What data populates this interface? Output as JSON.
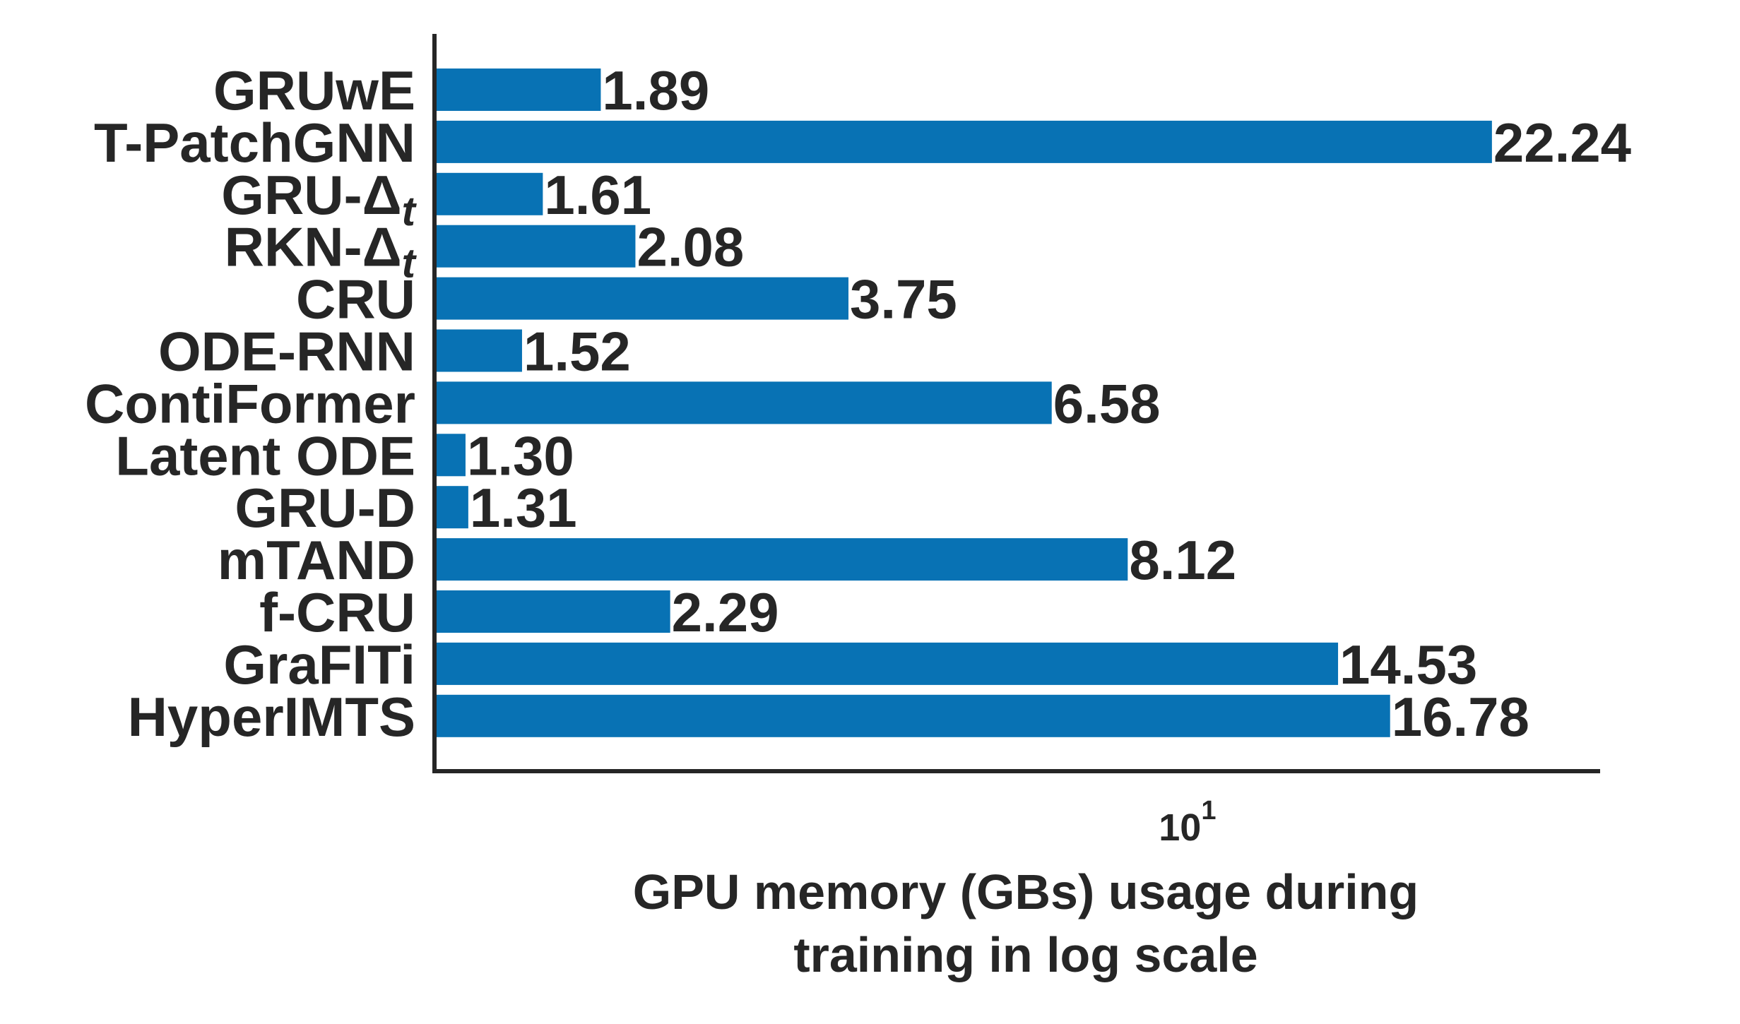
{
  "chart_data": {
    "type": "bar",
    "orientation": "horizontal",
    "x_scale": "log",
    "xlim": [
      1.2,
      30
    ],
    "grid": false,
    "bar_color": "#0872b4",
    "text_color": "#262626",
    "categories": [
      {
        "name": "GRUwE",
        "subscript": ""
      },
      {
        "name": "T-PatchGNN",
        "subscript": ""
      },
      {
        "name": "GRU-Δ",
        "subscript": "t"
      },
      {
        "name": "RKN-Δ",
        "subscript": "t"
      },
      {
        "name": "CRU",
        "subscript": ""
      },
      {
        "name": "ODE-RNN",
        "subscript": ""
      },
      {
        "name": "ContiFormer",
        "subscript": ""
      },
      {
        "name": "Latent ODE",
        "subscript": ""
      },
      {
        "name": "GRU-D",
        "subscript": ""
      },
      {
        "name": "mTAND",
        "subscript": ""
      },
      {
        "name": "f-CRU",
        "subscript": ""
      },
      {
        "name": "GraFITi",
        "subscript": ""
      },
      {
        "name": "HyperIMTS",
        "subscript": ""
      }
    ],
    "values": [
      1.89,
      22.24,
      1.61,
      2.08,
      3.75,
      1.52,
      6.58,
      1.3,
      1.31,
      8.12,
      2.29,
      14.53,
      16.78
    ],
    "value_labels": [
      "1.89",
      "22.24",
      "1.61",
      "2.08",
      "3.75",
      "1.52",
      "6.58",
      "1.30",
      "1.31",
      "8.12",
      "2.29",
      "14.53",
      "16.78"
    ],
    "x_ticks": [
      {
        "value": 10,
        "base": "10",
        "exponent": "1"
      }
    ],
    "xlabel_lines": [
      "GPU memory (GBs) usage during",
      "training in log scale"
    ],
    "ylabel": "",
    "title": ""
  }
}
